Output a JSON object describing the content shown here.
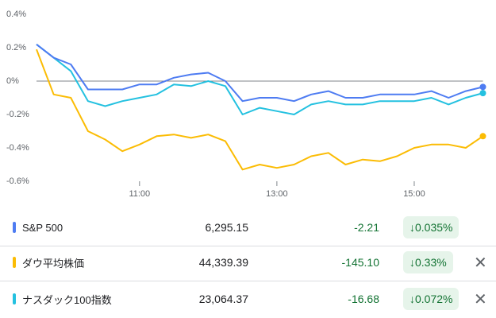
{
  "chart_data": {
    "type": "line",
    "x": [
      9.5,
      9.75,
      10,
      10.25,
      10.5,
      10.75,
      11,
      11.25,
      11.5,
      11.75,
      12,
      12.25,
      12.5,
      12.75,
      13,
      13.25,
      13.5,
      13.75,
      14,
      14.25,
      14.5,
      14.75,
      15,
      15.25,
      15.5,
      15.75,
      16
    ],
    "xlim": [
      9.5,
      16
    ],
    "xticks": [
      {
        "value": 11,
        "label": "11:00"
      },
      {
        "value": 13,
        "label": "13:00"
      },
      {
        "value": 15,
        "label": "15:00"
      }
    ],
    "ylim": [
      -0.6,
      0.4
    ],
    "yticks": [
      {
        "value": -0.6,
        "label": "-0.6%"
      },
      {
        "value": -0.4,
        "label": "-0.4%"
      },
      {
        "value": -0.2,
        "label": "-0.2%"
      },
      {
        "value": 0,
        "label": "0%"
      },
      {
        "value": 0.2,
        "label": "0.2%"
      },
      {
        "value": 0.4,
        "label": "0.4%"
      }
    ],
    "series": [
      {
        "name": "S&P 500",
        "color": "#4e7cf2",
        "values": [
          0.22,
          0.14,
          0.1,
          -0.05,
          -0.05,
          -0.05,
          -0.02,
          -0.02,
          0.02,
          0.04,
          0.05,
          0.0,
          -0.12,
          -0.1,
          -0.1,
          -0.12,
          -0.08,
          -0.06,
          -0.1,
          -0.1,
          -0.08,
          -0.08,
          -0.08,
          -0.06,
          -0.1,
          -0.06,
          -0.035
        ]
      },
      {
        "name": "ダウ平均株価",
        "color": "#fbbc04",
        "values": [
          0.19,
          -0.08,
          -0.1,
          -0.3,
          -0.35,
          -0.42,
          -0.38,
          -0.33,
          -0.32,
          -0.34,
          -0.32,
          -0.36,
          -0.53,
          -0.5,
          -0.52,
          -0.5,
          -0.45,
          -0.43,
          -0.5,
          -0.47,
          -0.48,
          -0.45,
          -0.4,
          -0.38,
          -0.38,
          -0.4,
          -0.33
        ]
      },
      {
        "name": "ナスダック100指数",
        "color": "#24c1e0",
        "values": [
          0.22,
          0.14,
          0.06,
          -0.12,
          -0.15,
          -0.12,
          -0.1,
          -0.08,
          -0.02,
          -0.03,
          0.0,
          -0.03,
          -0.2,
          -0.16,
          -0.18,
          -0.2,
          -0.14,
          -0.12,
          -0.14,
          -0.14,
          -0.12,
          -0.12,
          -0.12,
          -0.1,
          -0.14,
          -0.1,
          -0.072
        ]
      }
    ]
  },
  "table": {
    "rows": [
      {
        "price": "6,295.15",
        "change": "-2.21",
        "change_pct": "↓0.035%"
      },
      {
        "price": "44,339.39",
        "change": "-145.10",
        "change_pct": "↓0.33%"
      },
      {
        "price": "23,064.37",
        "change": "-16.68",
        "change_pct": "↓0.072%"
      }
    ]
  }
}
